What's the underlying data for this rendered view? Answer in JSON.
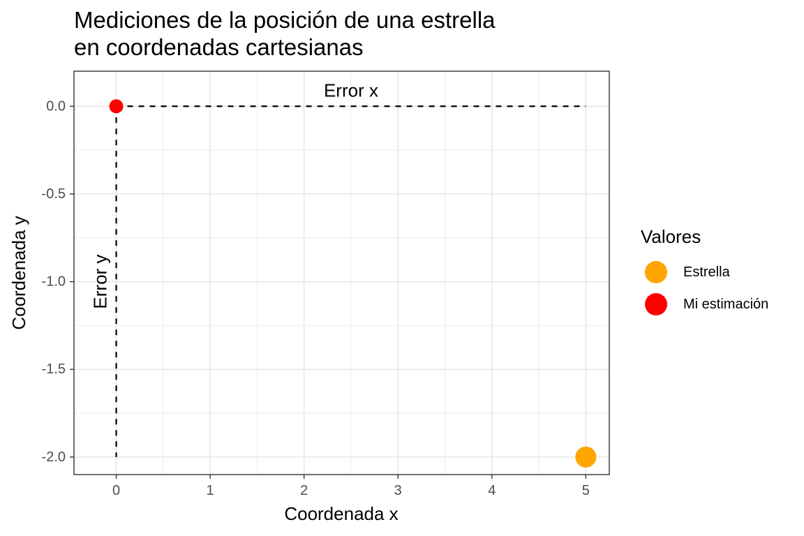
{
  "chart_data": {
    "type": "scatter",
    "title": [
      "Mediciones de la posición de una estrella",
      "en coordenadas cartesianas"
    ],
    "xlabel": "Coordenada x",
    "ylabel": "Coordenada y",
    "xlim": [
      -0.45,
      5.25
    ],
    "ylim": [
      -2.1,
      0.2
    ],
    "xticks": [
      0,
      1,
      2,
      3,
      4,
      5
    ],
    "xtick_labels": [
      "0",
      "1",
      "2",
      "3",
      "4",
      "5"
    ],
    "yticks": [
      0.0,
      -0.5,
      -1.0,
      -1.5,
      -2.0
    ],
    "ytick_labels": [
      "0.0",
      "-0.5",
      "-1.0",
      "-1.5",
      "-2.0"
    ],
    "grid": true,
    "legend_position": "right",
    "legend_title": "Valores",
    "series": [
      {
        "name": "Estrella",
        "color": "#FFA500",
        "points": [
          {
            "x": 5,
            "y": -2
          }
        ]
      },
      {
        "name": "Mi estimación",
        "color": "#FF0000",
        "points": [
          {
            "x": 0,
            "y": 0
          }
        ]
      }
    ],
    "guide_lines": [
      {
        "from": {
          "x": 0,
          "y": 0
        },
        "to": {
          "x": 5,
          "y": 0
        },
        "style": "dashed"
      },
      {
        "from": {
          "x": 0,
          "y": 0
        },
        "to": {
          "x": 0,
          "y": -2
        },
        "style": "dashed"
      }
    ],
    "annotations": [
      {
        "text": "Error x",
        "x": 2.5,
        "y": 0.09,
        "rotation": 0
      },
      {
        "text": "Error y",
        "x": -0.17,
        "y": -1.0,
        "rotation": -90
      }
    ]
  }
}
